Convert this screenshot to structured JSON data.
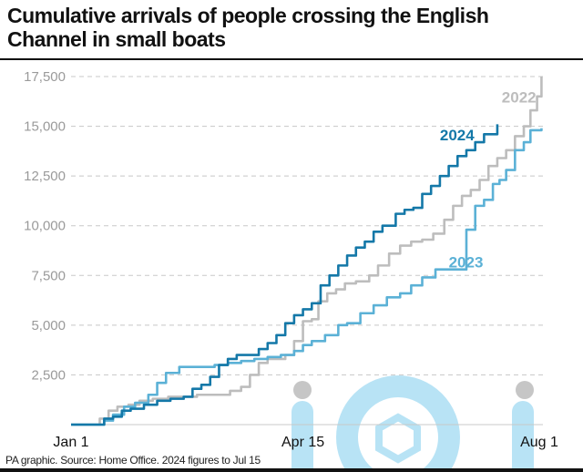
{
  "title": "Cumulative arrivals of people crossing the English Channel in small boats",
  "source": "PA graphic. Source: Home Office. 2024 figures to Jul 15",
  "watermark": "iconic",
  "chart_data": {
    "type": "line",
    "title": "Cumulative arrivals of people crossing the English Channel in small boats",
    "xlabel": "",
    "ylabel": "",
    "x_unit": "day of year",
    "xlim": [
      1,
      213
    ],
    "ylim": [
      0,
      17500
    ],
    "grid": true,
    "yticks": [
      2500,
      5000,
      7500,
      10000,
      12500,
      15000,
      17500
    ],
    "ytick_labels": [
      "2,500",
      "5,000",
      "7,500",
      "10,000",
      "12,500",
      "15,000",
      "17,500"
    ],
    "xticks": [
      1,
      106,
      213
    ],
    "xtick_labels": [
      "Jan 1",
      "Apr 15",
      "Aug 1"
    ],
    "series": [
      {
        "name": "2022",
        "color": "#bdbdbd",
        "label_pos": [
          196,
          16200
        ],
        "points": [
          [
            1,
            0
          ],
          [
            10,
            0
          ],
          [
            14,
            300
          ],
          [
            18,
            700
          ],
          [
            22,
            900
          ],
          [
            27,
            1000
          ],
          [
            32,
            1200
          ],
          [
            38,
            1300
          ],
          [
            45,
            1400
          ],
          [
            52,
            1400
          ],
          [
            58,
            1500
          ],
          [
            63,
            1500
          ],
          [
            68,
            1500
          ],
          [
            73,
            1700
          ],
          [
            78,
            1900
          ],
          [
            82,
            2500
          ],
          [
            86,
            3100
          ],
          [
            90,
            3300
          ],
          [
            95,
            3300
          ],
          [
            98,
            3500
          ],
          [
            102,
            4200
          ],
          [
            106,
            5200
          ],
          [
            110,
            5300
          ],
          [
            113,
            6200
          ],
          [
            117,
            6600
          ],
          [
            121,
            6800
          ],
          [
            125,
            7100
          ],
          [
            130,
            7200
          ],
          [
            136,
            7500
          ],
          [
            140,
            8000
          ],
          [
            145,
            8600
          ],
          [
            150,
            9000
          ],
          [
            155,
            9200
          ],
          [
            160,
            9300
          ],
          [
            165,
            9600
          ],
          [
            170,
            10300
          ],
          [
            174,
            11000
          ],
          [
            178,
            11500
          ],
          [
            182,
            11800
          ],
          [
            186,
            12300
          ],
          [
            190,
            13000
          ],
          [
            194,
            13400
          ],
          [
            198,
            13800
          ],
          [
            202,
            14500
          ],
          [
            206,
            15000
          ],
          [
            209,
            15800
          ],
          [
            212,
            16500
          ],
          [
            214,
            17500
          ]
        ]
      },
      {
        "name": "2023",
        "color": "#5bb1d6",
        "label_pos": [
          172,
          7900
        ],
        "points": [
          [
            1,
            0
          ],
          [
            12,
            0
          ],
          [
            16,
            200
          ],
          [
            20,
            500
          ],
          [
            25,
            900
          ],
          [
            30,
            1100
          ],
          [
            36,
            1500
          ],
          [
            40,
            2100
          ],
          [
            44,
            2600
          ],
          [
            50,
            2900
          ],
          [
            56,
            2900
          ],
          [
            62,
            2900
          ],
          [
            66,
            3000
          ],
          [
            72,
            3100
          ],
          [
            78,
            3200
          ],
          [
            84,
            3300
          ],
          [
            90,
            3400
          ],
          [
            96,
            3500
          ],
          [
            102,
            3700
          ],
          [
            106,
            4000
          ],
          [
            110,
            4200
          ],
          [
            116,
            4500
          ],
          [
            122,
            5000
          ],
          [
            126,
            5100
          ],
          [
            132,
            5600
          ],
          [
            138,
            6000
          ],
          [
            144,
            6400
          ],
          [
            150,
            6600
          ],
          [
            155,
            7000
          ],
          [
            160,
            7400
          ],
          [
            166,
            7800
          ],
          [
            172,
            7800
          ],
          [
            176,
            7800
          ],
          [
            180,
            9800
          ],
          [
            184,
            11000
          ],
          [
            188,
            11300
          ],
          [
            192,
            12100
          ],
          [
            195,
            12300
          ],
          [
            198,
            12800
          ],
          [
            202,
            13800
          ],
          [
            206,
            14200
          ],
          [
            209,
            14800
          ],
          [
            214,
            14900
          ]
        ]
      },
      {
        "name": "2024",
        "color": "#1478a8",
        "label_pos": [
          168,
          14300
        ],
        "points": [
          [
            1,
            0
          ],
          [
            12,
            0
          ],
          [
            16,
            300
          ],
          [
            20,
            400
          ],
          [
            24,
            700
          ],
          [
            28,
            800
          ],
          [
            34,
            1000
          ],
          [
            40,
            1200
          ],
          [
            46,
            1300
          ],
          [
            52,
            1400
          ],
          [
            56,
            1800
          ],
          [
            60,
            2000
          ],
          [
            64,
            2400
          ],
          [
            68,
            3000
          ],
          [
            72,
            3300
          ],
          [
            76,
            3500
          ],
          [
            82,
            3500
          ],
          [
            86,
            3800
          ],
          [
            90,
            4100
          ],
          [
            94,
            4500
          ],
          [
            98,
            5100
          ],
          [
            102,
            5500
          ],
          [
            106,
            5800
          ],
          [
            110,
            6100
          ],
          [
            114,
            7000
          ],
          [
            118,
            7500
          ],
          [
            122,
            8000
          ],
          [
            126,
            8500
          ],
          [
            130,
            8900
          ],
          [
            134,
            9200
          ],
          [
            138,
            9700
          ],
          [
            142,
            10000
          ],
          [
            148,
            10600
          ],
          [
            152,
            10800
          ],
          [
            156,
            10900
          ],
          [
            160,
            11600
          ],
          [
            164,
            12000
          ],
          [
            168,
            12500
          ],
          [
            172,
            13000
          ],
          [
            176,
            13500
          ],
          [
            180,
            13800
          ],
          [
            184,
            14200
          ],
          [
            188,
            14600
          ],
          [
            194,
            15100
          ]
        ]
      }
    ]
  }
}
